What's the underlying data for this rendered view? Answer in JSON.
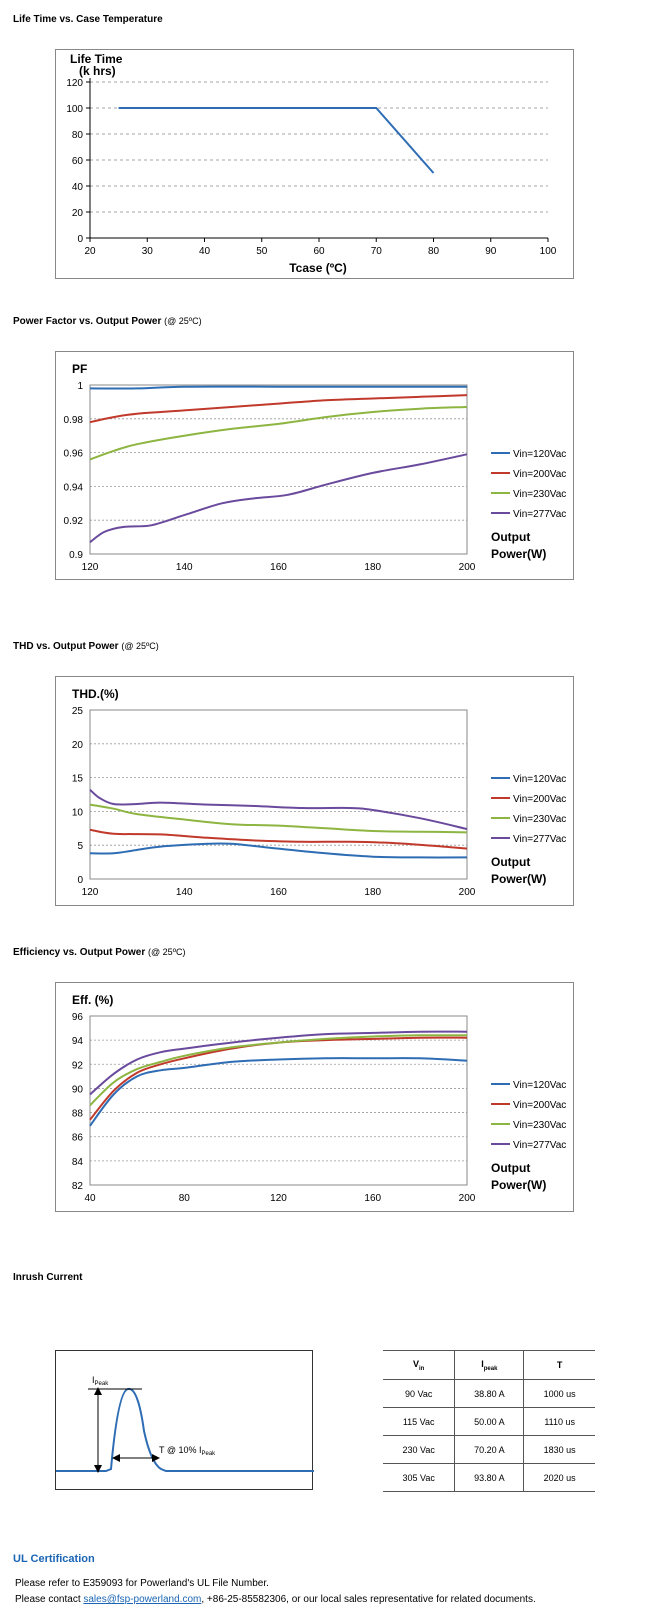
{
  "sections": {
    "life": {
      "title": "Life Time vs. Case Temperature"
    },
    "pf": {
      "title": "Power Factor vs. Output Power",
      "sub": "(@ 25ºC)"
    },
    "thd": {
      "title": "THD vs. Output Power",
      "sub": "(@ 25ºC)"
    },
    "eff": {
      "title": "Efficiency vs. Output Power",
      "sub": "(@ 25ºC)"
    },
    "inrush": {
      "title": "Inrush Current"
    },
    "ul": {
      "title": "UL Certification",
      "line1": "Please refer to E359093 for Powerland's UL File Number.",
      "line2_pre": "Please contact ",
      "line2_link": "sales@fsp-powerland.com",
      "line2_post": ", +86-25-85582306, or our local sales representative for related documents."
    }
  },
  "colors": {
    "blue": "#2e6db4",
    "red": "#c0392b",
    "green": "#8db541",
    "purple": "#6a4a9c"
  },
  "chart_data": [
    {
      "type": "line",
      "ylabel_lines": [
        "Life Time",
        "(k hrs)"
      ],
      "xlabel": "Tcase (ºC)",
      "xlim": [
        20,
        100
      ],
      "ylim": [
        0,
        120
      ],
      "xticks": [
        20,
        30,
        40,
        50,
        60,
        70,
        80,
        90,
        100
      ],
      "yticks": [
        0,
        20,
        40,
        60,
        80,
        100,
        120
      ],
      "grid": "horizontal-dashed",
      "series": [
        {
          "color": "#2e6db4",
          "x": [
            25,
            70,
            80
          ],
          "y": [
            100,
            100,
            50
          ]
        }
      ]
    },
    {
      "type": "line",
      "ylabel_lines": [
        "PF"
      ],
      "xlabel_lines": [
        "Output",
        "Power(W)"
      ],
      "xlim": [
        120,
        200
      ],
      "ylim": [
        0.9,
        1.0
      ],
      "xticks": [
        120,
        140,
        160,
        180,
        200
      ],
      "yticks": [
        0.9,
        0.92,
        0.94,
        0.96,
        0.98,
        1
      ],
      "ytick_labels": [
        "0.9",
        "0.92",
        "0.94",
        "0.96",
        "0.98",
        "1"
      ],
      "legend": "right",
      "series": [
        {
          "name": "Vin=120Vac",
          "color": "#2e6db4",
          "x": [
            120,
            130,
            140,
            160,
            180,
            200
          ],
          "y": [
            0.998,
            0.998,
            0.999,
            0.999,
            0.999,
            0.999
          ]
        },
        {
          "name": "Vin=200Vac",
          "color": "#c0392b",
          "x": [
            120,
            125,
            130,
            140,
            150,
            160,
            170,
            180,
            190,
            200
          ],
          "y": [
            0.978,
            0.981,
            0.983,
            0.985,
            0.987,
            0.989,
            0.991,
            0.992,
            0.993,
            0.994
          ]
        },
        {
          "name": "Vin=230Vac",
          "color": "#8db541",
          "x": [
            120,
            125,
            130,
            140,
            150,
            160,
            170,
            180,
            190,
            200
          ],
          "y": [
            0.956,
            0.961,
            0.965,
            0.97,
            0.974,
            0.977,
            0.981,
            0.984,
            0.986,
            0.987
          ]
        },
        {
          "name": "Vin=277Vac",
          "color": "#6a4a9c",
          "x": [
            120,
            123,
            127,
            133,
            140,
            148,
            155,
            162,
            170,
            180,
            190,
            200
          ],
          "y": [
            0.907,
            0.913,
            0.916,
            0.917,
            0.923,
            0.93,
            0.933,
            0.935,
            0.941,
            0.948,
            0.953,
            0.959
          ]
        }
      ]
    },
    {
      "type": "line",
      "ylabel_lines": [
        "THD.(%)"
      ],
      "xlabel_lines": [
        "Output",
        "Power(W)"
      ],
      "xlim": [
        120,
        200
      ],
      "ylim": [
        0,
        25
      ],
      "xticks": [
        120,
        140,
        160,
        180,
        200
      ],
      "yticks": [
        0,
        5,
        10,
        15,
        20,
        25
      ],
      "legend": "right",
      "series": [
        {
          "name": "Vin=120Vac",
          "color": "#2e6db4",
          "x": [
            120,
            125,
            130,
            135,
            145,
            150,
            160,
            170,
            180,
            190,
            200
          ],
          "y": [
            3.8,
            3.8,
            4.3,
            4.8,
            5.2,
            5.2,
            4.5,
            3.8,
            3.3,
            3.2,
            3.2
          ]
        },
        {
          "name": "Vin=200Vac",
          "color": "#c0392b",
          "x": [
            120,
            125,
            135,
            145,
            155,
            165,
            175,
            185,
            195,
            200
          ],
          "y": [
            7.3,
            6.7,
            6.6,
            6.1,
            5.7,
            5.5,
            5.5,
            5.3,
            4.8,
            4.5
          ]
        },
        {
          "name": "Vin=230Vac",
          "color": "#8db541",
          "x": [
            120,
            125,
            130,
            140,
            150,
            160,
            170,
            180,
            190,
            200
          ],
          "y": [
            11.0,
            10.4,
            9.6,
            8.8,
            8.1,
            7.9,
            7.5,
            7.1,
            7.0,
            6.9
          ]
        },
        {
          "name": "Vin=277Vac",
          "color": "#6a4a9c",
          "x": [
            120,
            122,
            125,
            130,
            135,
            145,
            155,
            165,
            175,
            180,
            190,
            200
          ],
          "y": [
            13.2,
            12.0,
            11.1,
            11.1,
            11.3,
            11.0,
            10.8,
            10.5,
            10.5,
            10.2,
            9.0,
            7.4
          ]
        }
      ]
    },
    {
      "type": "line",
      "ylabel_lines": [
        "Eff. (%)"
      ],
      "xlabel_lines": [
        "Output",
        "Power(W)"
      ],
      "xlim": [
        40,
        200
      ],
      "ylim": [
        82,
        96
      ],
      "xticks": [
        40,
        80,
        120,
        160,
        200
      ],
      "yticks": [
        82,
        84,
        86,
        88,
        90,
        92,
        94,
        96
      ],
      "legend": "right",
      "series": [
        {
          "name": "Vin=120Vac",
          "color": "#2e6db4",
          "x": [
            40,
            50,
            60,
            70,
            80,
            100,
            120,
            140,
            160,
            180,
            200
          ],
          "y": [
            86.9,
            89.5,
            91.0,
            91.5,
            91.7,
            92.2,
            92.4,
            92.5,
            92.5,
            92.5,
            92.3
          ]
        },
        {
          "name": "Vin=200Vac",
          "color": "#c0392b",
          "x": [
            40,
            50,
            60,
            70,
            80,
            100,
            120,
            140,
            160,
            180,
            200
          ],
          "y": [
            87.4,
            89.8,
            91.3,
            92.0,
            92.5,
            93.3,
            93.8,
            94.0,
            94.1,
            94.2,
            94.2
          ]
        },
        {
          "name": "Vin=230Vac",
          "color": "#8db541",
          "x": [
            40,
            50,
            60,
            70,
            80,
            100,
            120,
            140,
            160,
            180,
            200
          ],
          "y": [
            88.6,
            90.5,
            91.6,
            92.2,
            92.7,
            93.4,
            93.8,
            94.1,
            94.3,
            94.4,
            94.4
          ]
        },
        {
          "name": "Vin=277Vac",
          "color": "#6a4a9c",
          "x": [
            40,
            50,
            60,
            70,
            80,
            100,
            120,
            140,
            160,
            180,
            200
          ],
          "y": [
            89.5,
            91.2,
            92.4,
            93.0,
            93.3,
            93.8,
            94.2,
            94.5,
            94.6,
            94.7,
            94.7
          ]
        }
      ]
    }
  ],
  "inrush": {
    "diagram": {
      "peak_label": "I",
      "peak_sub": "Peak",
      "t_label": "T @ 10% I",
      "t_sub": "Peak"
    },
    "headers": [
      {
        "main": "V",
        "sub": "in"
      },
      {
        "main": "I",
        "sub": "peak"
      },
      {
        "main": "T",
        "sub": ""
      }
    ],
    "rows": [
      [
        "90 Vac",
        "38.80 A",
        "1000 us"
      ],
      [
        "115 Vac",
        "50.00 A",
        "1110 us"
      ],
      [
        "230 Vac",
        "70.20 A",
        "1830 us"
      ],
      [
        "305 Vac",
        "93.80 A",
        "2020 us"
      ]
    ]
  }
}
